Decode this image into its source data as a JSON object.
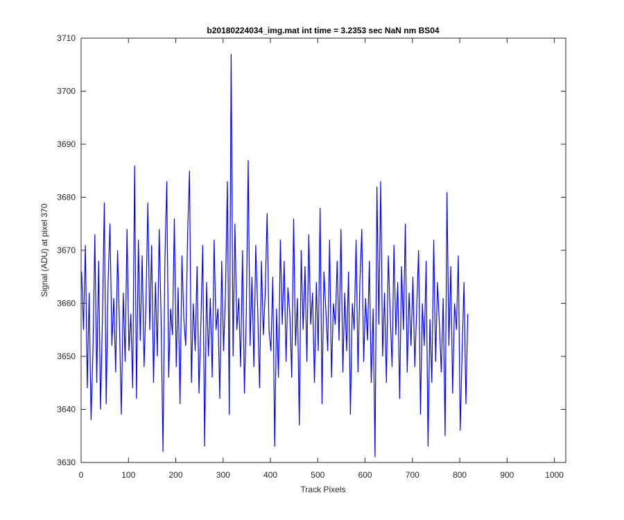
{
  "chart_data": {
    "type": "line",
    "title": "b20180224034_img.mat int time = 3.2353 sec  NaN nm BS04",
    "xlabel": "Track Pixels",
    "ylabel": "Signal (ADU) at pixel 370",
    "xlim": [
      0,
      1024
    ],
    "ylim": [
      3630,
      3710
    ],
    "x_ticks": [
      0,
      100,
      200,
      300,
      400,
      500,
      600,
      700,
      800,
      900,
      1000
    ],
    "y_ticks": [
      3630,
      3640,
      3650,
      3660,
      3670,
      3680,
      3690,
      3700,
      3710
    ],
    "grid": false,
    "series": [
      {
        "color": "#0000ff",
        "x_start": 1,
        "x_step": 4,
        "values": [
          3666,
          3655,
          3671,
          3644,
          3662,
          3638,
          3651,
          3673,
          3645,
          3668,
          3640,
          3657,
          3679,
          3641,
          3664,
          3675,
          3652,
          3661,
          3647,
          3670,
          3656,
          3639,
          3662,
          3649,
          3674,
          3651,
          3658,
          3644,
          3686,
          3642,
          3672,
          3653,
          3669,
          3648,
          3660,
          3679,
          3655,
          3671,
          3645,
          3664,
          3650,
          3674,
          3657,
          3632,
          3668,
          3683,
          3646,
          3659,
          3654,
          3676,
          3648,
          3663,
          3641,
          3669,
          3657,
          3652,
          3673,
          3685,
          3645,
          3660,
          3651,
          3667,
          3643,
          3656,
          3671,
          3633,
          3664,
          3650,
          3661,
          3646,
          3672,
          3655,
          3659,
          3642,
          3668,
          3651,
          3662,
          3683,
          3639,
          3707,
          3650,
          3675,
          3655,
          3661,
          3648,
          3670,
          3643,
          3658,
          3687,
          3652,
          3665,
          3648,
          3671,
          3659,
          3644,
          3668,
          3654,
          3662,
          3677,
          3655,
          3651,
          3665,
          3633,
          3659,
          3646,
          3672,
          3656,
          3668,
          3649,
          3663,
          3658,
          3646,
          3676,
          3652,
          3661,
          3637,
          3670,
          3655,
          3667,
          3649,
          3673,
          3656,
          3662,
          3645,
          3664,
          3651,
          3678,
          3641,
          3666,
          3659,
          3651,
          3672,
          3646,
          3660,
          3656,
          3668,
          3653,
          3674,
          3647,
          3662,
          3651,
          3666,
          3639,
          3660,
          3655,
          3672,
          3647,
          3664,
          3674,
          3649,
          3661,
          3653,
          3668,
          3645,
          3659,
          3631,
          3682,
          3656,
          3683,
          3650,
          3662,
          3645,
          3669,
          3658,
          3648,
          3671,
          3654,
          3664,
          3642,
          3667,
          3655,
          3675,
          3647,
          3662,
          3652,
          3665,
          3648,
          3659,
          3670,
          3639,
          3660,
          3652,
          3668,
          3633,
          3657,
          3645,
          3672,
          3649,
          3664,
          3656,
          3647,
          3661,
          3635,
          3681,
          3652,
          3667,
          3643,
          3660,
          3655,
          3669,
          3636,
          3651,
          3664,
          3641,
          3658
        ]
      }
    ]
  }
}
